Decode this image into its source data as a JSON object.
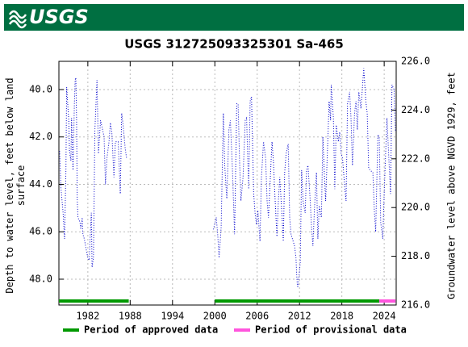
{
  "header": {
    "logo_text": "USGS"
  },
  "chart_data": {
    "type": "line",
    "title": "USGS 312725093325301 Sa-465",
    "ylabel": "Depth to water level, feet below land surface",
    "y2label": "Groundwater level above NGVD 1929, feet",
    "xlim": [
      1977.9,
      2025.7
    ],
    "xticks": [
      1982,
      1988,
      1994,
      2000,
      2006,
      2012,
      2018,
      2024
    ],
    "ylim": [
      49.09,
      38.81
    ],
    "yticks": [
      {
        "value": 40,
        "label": "40.0"
      },
      {
        "value": 42,
        "label": "42.0"
      },
      {
        "value": 44,
        "label": "44.0"
      },
      {
        "value": 46,
        "label": "46.0"
      },
      {
        "value": 48,
        "label": "48.0"
      }
    ],
    "y2lim": [
      216,
      226
    ],
    "y2ticks": [
      {
        "value": 216,
        "label": "216.0"
      },
      {
        "value": 218,
        "label": "218.0"
      },
      {
        "value": 220,
        "label": "220.0"
      },
      {
        "value": 222,
        "label": "222.0"
      },
      {
        "value": 224,
        "label": "224.0"
      },
      {
        "value": 226,
        "label": "226.0"
      }
    ],
    "grid": true,
    "x": [
      1978.0,
      1978.2,
      1978.5,
      1978.7,
      1978.9,
      1979.0,
      1979.3,
      1979.4,
      1979.6,
      1979.7,
      1979.9,
      1980.1,
      1980.2,
      1980.3,
      1980.4,
      1980.5,
      1980.6,
      1980.9,
      1981.0,
      1981.2,
      1981.3,
      1981.5,
      1981.8,
      1982.0,
      1982.2,
      1982.3,
      1982.5,
      1982.6,
      1982.8,
      1983.0,
      1983.3,
      1983.5,
      1983.8,
      1984.1,
      1984.3,
      1984.5,
      1984.7,
      1985.0,
      1985.2,
      1985.4,
      1985.7,
      1985.9,
      1986.3,
      1986.6,
      1986.8,
      1987.0,
      1987.3,
      1987.5,
      1993.5,
      1999.8,
      2000.2,
      2000.4,
      2000.6,
      2000.9,
      2001.2,
      2001.4,
      2001.7,
      2002.0,
      2002.2,
      2002.5,
      2002.8,
      2003.1,
      2003.3,
      2003.5,
      2003.7,
      2004.0,
      2004.3,
      2004.5,
      2004.8,
      2005.0,
      2005.2,
      2005.5,
      2005.7,
      2005.9,
      2006.1,
      2006.4,
      2006.6,
      2006.9,
      2007.2,
      2007.4,
      2007.6,
      2008.1,
      2008.3,
      2008.5,
      2008.8,
      2009.0,
      2009.2,
      2009.5,
      2009.7,
      2009.9,
      2010.1,
      2010.4,
      2010.6,
      2010.8,
      2011.1,
      2011.3,
      2011.5,
      2011.6,
      2011.7,
      2011.8,
      2012.1,
      2012.3,
      2012.5,
      2012.8,
      2013.0,
      2013.2,
      2013.5,
      2013.7,
      2013.9,
      2014.1,
      2014.4,
      2014.6,
      2014.8,
      2015.1,
      2015.3,
      2015.5,
      2015.7,
      2016.0,
      2016.2,
      2016.4,
      2016.5,
      2016.8,
      2017.0,
      2017.2,
      2017.5,
      2017.7,
      2017.9,
      2018.1,
      2018.4,
      2018.6,
      2018.8,
      2019.1,
      2019.3,
      2019.5,
      2019.8,
      2020.0,
      2020.2,
      2020.4,
      2020.7,
      2020.9,
      2021.1,
      2021.4,
      2021.6,
      2021.8,
      2022.0,
      2022.4,
      2022.6,
      2022.8,
      2023.1,
      2023.3,
      2023.5,
      2023.8,
      2024.0,
      2024.2,
      2024.4,
      2024.7,
      2024.9,
      2025.1,
      2025.4,
      2025.6
    ],
    "series": [
      {
        "color": "#0000cc",
        "values": [
          42.6,
          44.2,
          45.2,
          46.3,
          43.4,
          39.9,
          41.3,
          42.6,
          43.0,
          41.2,
          43.4,
          40.6,
          39.6,
          39.5,
          41.3,
          44.6,
          45.4,
          45.6,
          45.9,
          45.4,
          46.1,
          46.3,
          46.8,
          47.1,
          47.2,
          46.4,
          45.2,
          47.5,
          47.1,
          41.7,
          39.6,
          42.7,
          41.3,
          41.7,
          42.0,
          44.0,
          42.9,
          42.2,
          41.4,
          41.8,
          43.7,
          42.2,
          42.2,
          44.4,
          41.0,
          41.5,
          42.5,
          42.9,
          null,
          45.9,
          45.4,
          46.1,
          47.1,
          45.8,
          41.0,
          43.2,
          44.6,
          41.7,
          41.3,
          43.4,
          46.1,
          40.6,
          40.6,
          43.0,
          44.7,
          43.7,
          41.3,
          41.2,
          44.2,
          40.5,
          40.3,
          44.4,
          45.2,
          45.7,
          45.1,
          46.4,
          43.7,
          42.2,
          42.9,
          44.7,
          45.4,
          42.2,
          43.0,
          44.4,
          46.2,
          44.7,
          43.7,
          45.2,
          46.4,
          43.5,
          42.7,
          42.3,
          45.4,
          46.1,
          46.4,
          46.6,
          47.1,
          47.8,
          48.3,
          48.3,
          47.3,
          43.4,
          44.7,
          45.2,
          43.4,
          43.2,
          44.6,
          45.8,
          46.6,
          45.1,
          43.5,
          46.3,
          44.9,
          45.4,
          42.0,
          43.4,
          44.7,
          42.2,
          40.5,
          41.3,
          39.8,
          41.2,
          44.2,
          41.5,
          42.2,
          41.8,
          42.7,
          42.9,
          44.1,
          44.7,
          40.6,
          40.1,
          41.2,
          43.2,
          41.0,
          40.5,
          41.7,
          40.1,
          40.8,
          40.0,
          39.1,
          40.5,
          41.0,
          43.3,
          43.4,
          43.5,
          45.1,
          46.0,
          41.9,
          42.0,
          45.6,
          46.3,
          44.4,
          42.7,
          41.2,
          43.2,
          44.4,
          39.8,
          40.0,
          41.8
        ]
      }
    ],
    "periods": [
      {
        "name": "Period of approved data",
        "color": "#009900",
        "ranges": [
          [
            1977.9,
            1987.8
          ],
          [
            2000.0,
            2023.3
          ]
        ]
      },
      {
        "name": "Period of provisional data",
        "color": "#ff55dd",
        "ranges": [
          [
            2023.3,
            2025.6
          ]
        ]
      }
    ]
  }
}
